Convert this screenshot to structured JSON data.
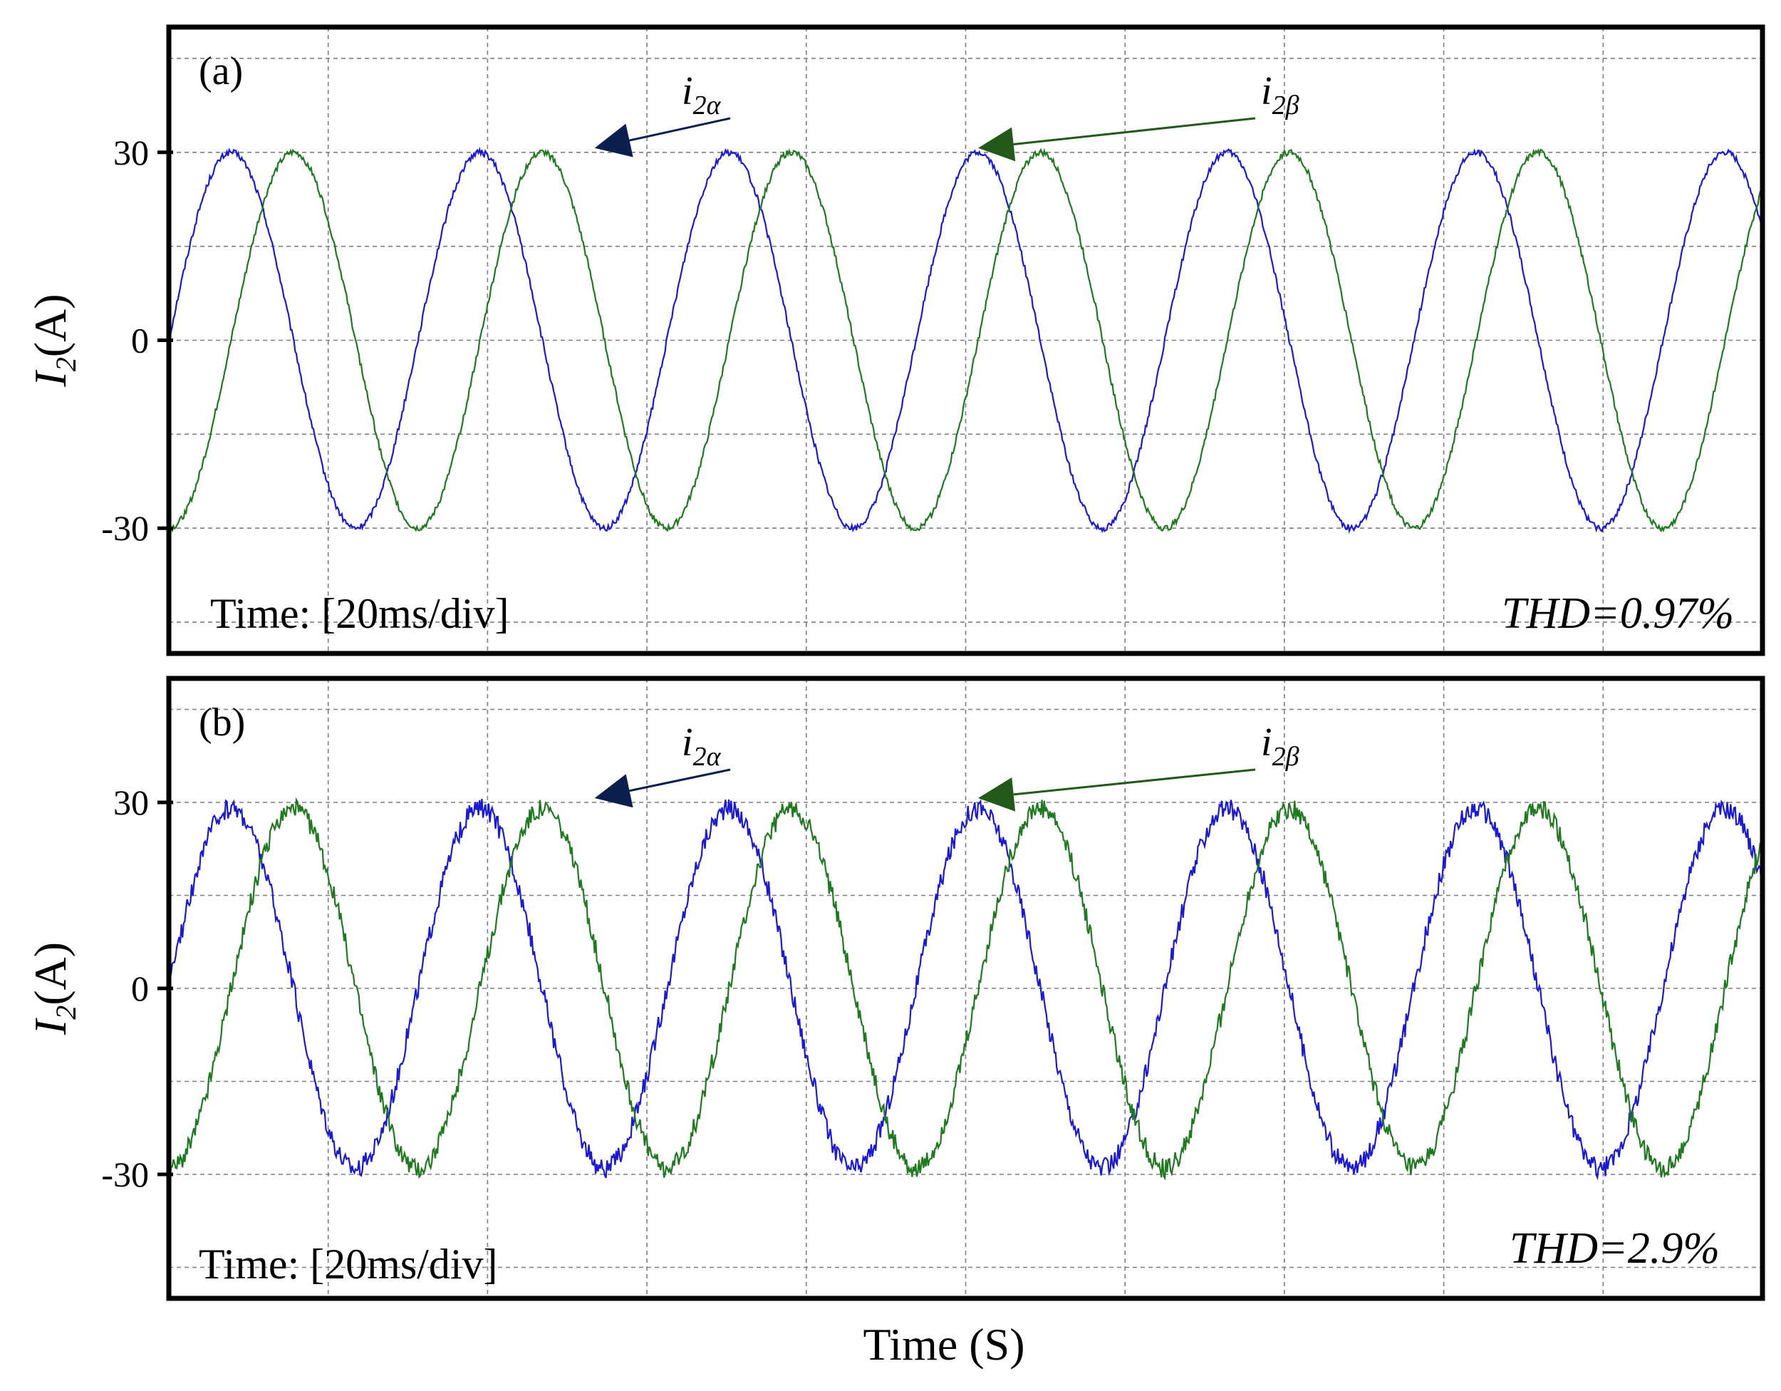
{
  "figure": {
    "xlabel": "Time (S)",
    "ylabel_main": "I",
    "ylabel_sub": "2",
    "ylabel_unit": "(A)"
  },
  "colors": {
    "i2alpha": "#1a1ad6",
    "i2beta": "#1f7a1f",
    "arrow_alpha": "#0b1f4f",
    "arrow_beta": "#235a1a",
    "grid": "#7f7f7f"
  },
  "chart_data": [
    {
      "type": "line",
      "panel": "(a)",
      "time_note": "Time: [20ms/div]",
      "thd": "THD=0.97%",
      "x_unit": "ms",
      "xlim": [
        0,
        128
      ],
      "ylim": [
        -50,
        50
      ],
      "y_ticks": [
        30,
        0,
        -30
      ],
      "y_tick_labels": [
        "30",
        "0",
        "-30"
      ],
      "grid": true,
      "noise": 0.5,
      "series": [
        {
          "name": "i2α",
          "label_main": "i",
          "label_sub": "2α",
          "amplitude": 30,
          "frequency_hz": 50,
          "phase_deg": 0,
          "color": "#1a1ad6"
        },
        {
          "name": "i2β",
          "label_main": "i",
          "label_sub": "2β",
          "amplitude": 30,
          "frequency_hz": 50,
          "phase_deg": -90,
          "color": "#1f7a1f"
        }
      ]
    },
    {
      "type": "line",
      "panel": "(b)",
      "time_note": "Time: [20ms/div]",
      "thd": "THD=2.9%",
      "x_unit": "ms",
      "xlim": [
        0,
        128
      ],
      "ylim": [
        -50,
        50
      ],
      "y_ticks": [
        30,
        0,
        -30
      ],
      "y_tick_labels": [
        "30",
        "0",
        "-30"
      ],
      "grid": true,
      "noise": 1.6,
      "series": [
        {
          "name": "i2α",
          "label_main": "i",
          "label_sub": "2α",
          "amplitude": 29,
          "frequency_hz": 50,
          "phase_deg": 0,
          "color": "#1a1ad6"
        },
        {
          "name": "i2β",
          "label_main": "i",
          "label_sub": "2β",
          "amplitude": 29,
          "frequency_hz": 50,
          "phase_deg": -90,
          "color": "#1f7a1f"
        }
      ]
    }
  ]
}
